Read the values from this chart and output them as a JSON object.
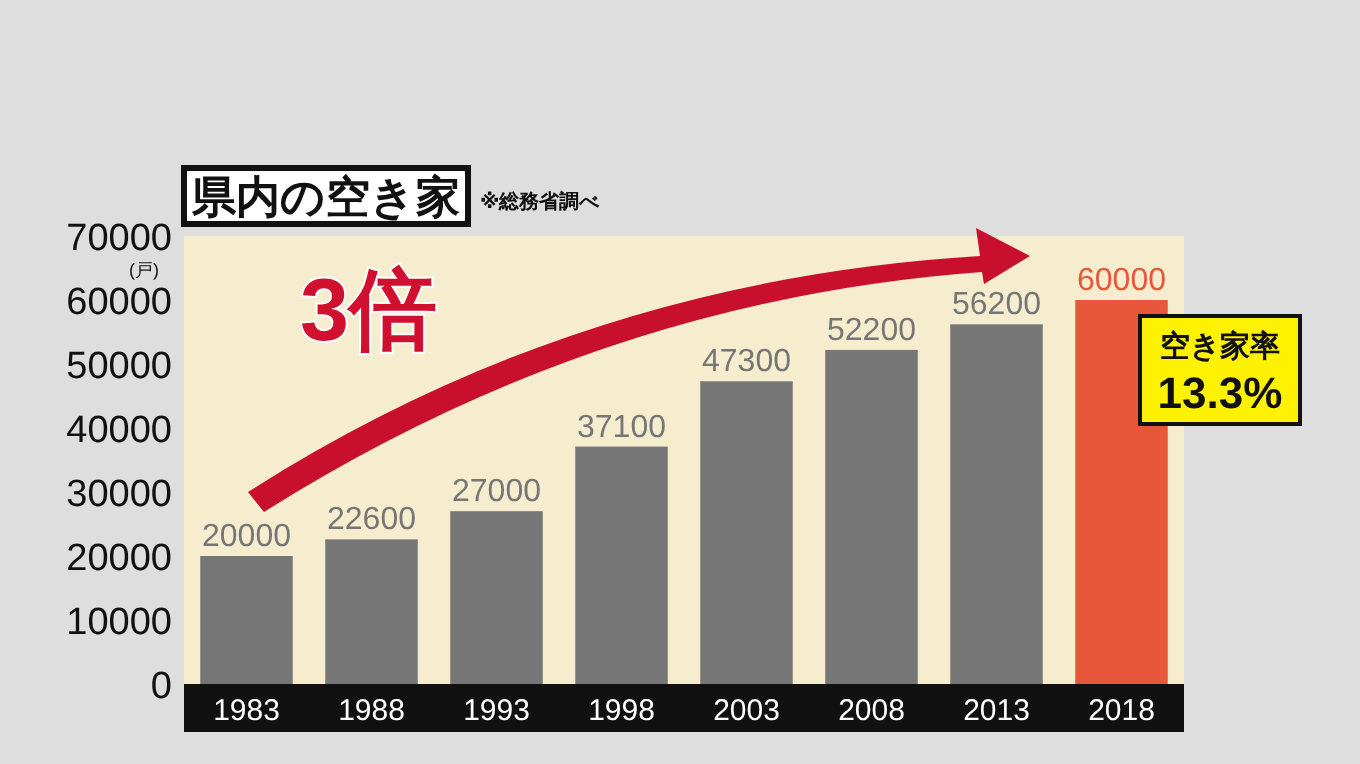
{
  "chart_data": {
    "type": "bar",
    "title": "県内の空き家",
    "ylabel": "(戸)",
    "categories": [
      "1983",
      "1988",
      "1993",
      "1998",
      "2003",
      "2008",
      "2013",
      "2018"
    ],
    "values": [
      20000,
      22600,
      27000,
      37100,
      47300,
      52200,
      56200,
      60000
    ],
    "colors": [
      "#767676",
      "#767676",
      "#767676",
      "#767676",
      "#767676",
      "#767676",
      "#767676",
      "#e8573a"
    ],
    "ylim": [
      0,
      70000
    ],
    "yticks": [
      0,
      10000,
      20000,
      30000,
      40000,
      50000,
      60000,
      70000
    ],
    "data_labels": true,
    "grid": false,
    "annotations": [
      "※総務省調べ",
      "3倍",
      "空き家率",
      "13.3%"
    ]
  }
}
